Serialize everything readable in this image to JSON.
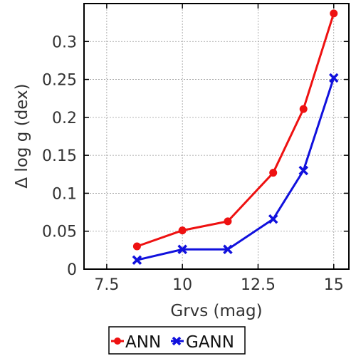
{
  "chart_data": {
    "type": "line",
    "xlabel": "Grvs (mag)",
    "ylabel": "Δ log g (dex)",
    "xlim": [
      6.75,
      15.5
    ],
    "ylim": [
      0,
      0.35
    ],
    "xticks": [
      7.5,
      10,
      12.5,
      15
    ],
    "xtick_labels": [
      "7.5",
      "10",
      "12.5",
      "15"
    ],
    "yticks": [
      0,
      0.05,
      0.1,
      0.15,
      0.2,
      0.25,
      0.3
    ],
    "ytick_labels": [
      "0",
      "0.05",
      "0.1",
      "0.15",
      "0.2",
      "0.25",
      "0.3"
    ],
    "grid": true,
    "legend_position": "bottom-center",
    "series": [
      {
        "name": "ANN",
        "color": "#ee1111",
        "marker": "circle",
        "x": [
          8.5,
          10,
          11.5,
          13,
          14,
          15
        ],
        "y": [
          0.03,
          0.051,
          0.063,
          0.127,
          0.211,
          0.337
        ]
      },
      {
        "name": "GANN",
        "color": "#1111dd",
        "marker": "x",
        "x": [
          8.5,
          10,
          11.5,
          13,
          14,
          15
        ],
        "y": [
          0.012,
          0.026,
          0.026,
          0.066,
          0.13,
          0.252
        ]
      }
    ]
  }
}
